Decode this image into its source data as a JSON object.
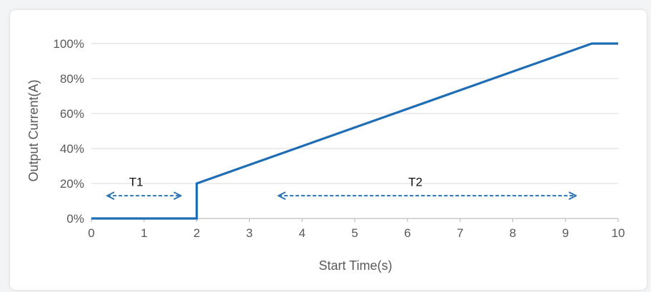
{
  "chart_data": {
    "type": "line",
    "title": "",
    "xlabel": "Start Time(s)",
    "ylabel": "Output Current(A)",
    "xlim": [
      0,
      10
    ],
    "ylim": [
      0,
      100
    ],
    "x_ticks": [
      0,
      1,
      2,
      3,
      4,
      5,
      6,
      7,
      8,
      9,
      10
    ],
    "x_tick_labels": [
      "0",
      "1",
      "2",
      "3",
      "4",
      "5",
      "6",
      "7",
      "8",
      "9",
      "10"
    ],
    "y_ticks": [
      0,
      20,
      40,
      60,
      80,
      100
    ],
    "y_tick_labels": [
      "0%",
      "20%",
      "40%",
      "60%",
      "80%",
      "100%"
    ],
    "grid": "horizontal",
    "series": [
      {
        "x": [
          0,
          2,
          2,
          9.5,
          10
        ],
        "y": [
          0,
          0,
          20,
          100,
          100
        ],
        "color": "#1f6db5"
      }
    ],
    "annotations": [
      {
        "label": "T1",
        "x_from": 0.3,
        "x_to": 1.7,
        "y": 13,
        "label_x": 0.85,
        "label_y": 21
      },
      {
        "label": "T2",
        "x_from": 3.55,
        "x_to": 9.2,
        "y": 13,
        "label_x": 6.15,
        "label_y": 21
      }
    ],
    "colors": {
      "line": "#1f6db5",
      "arrow": "#2e75b6",
      "grid": "#d9d9d9",
      "axis": "#bfbfbf",
      "text": "#595959"
    }
  }
}
